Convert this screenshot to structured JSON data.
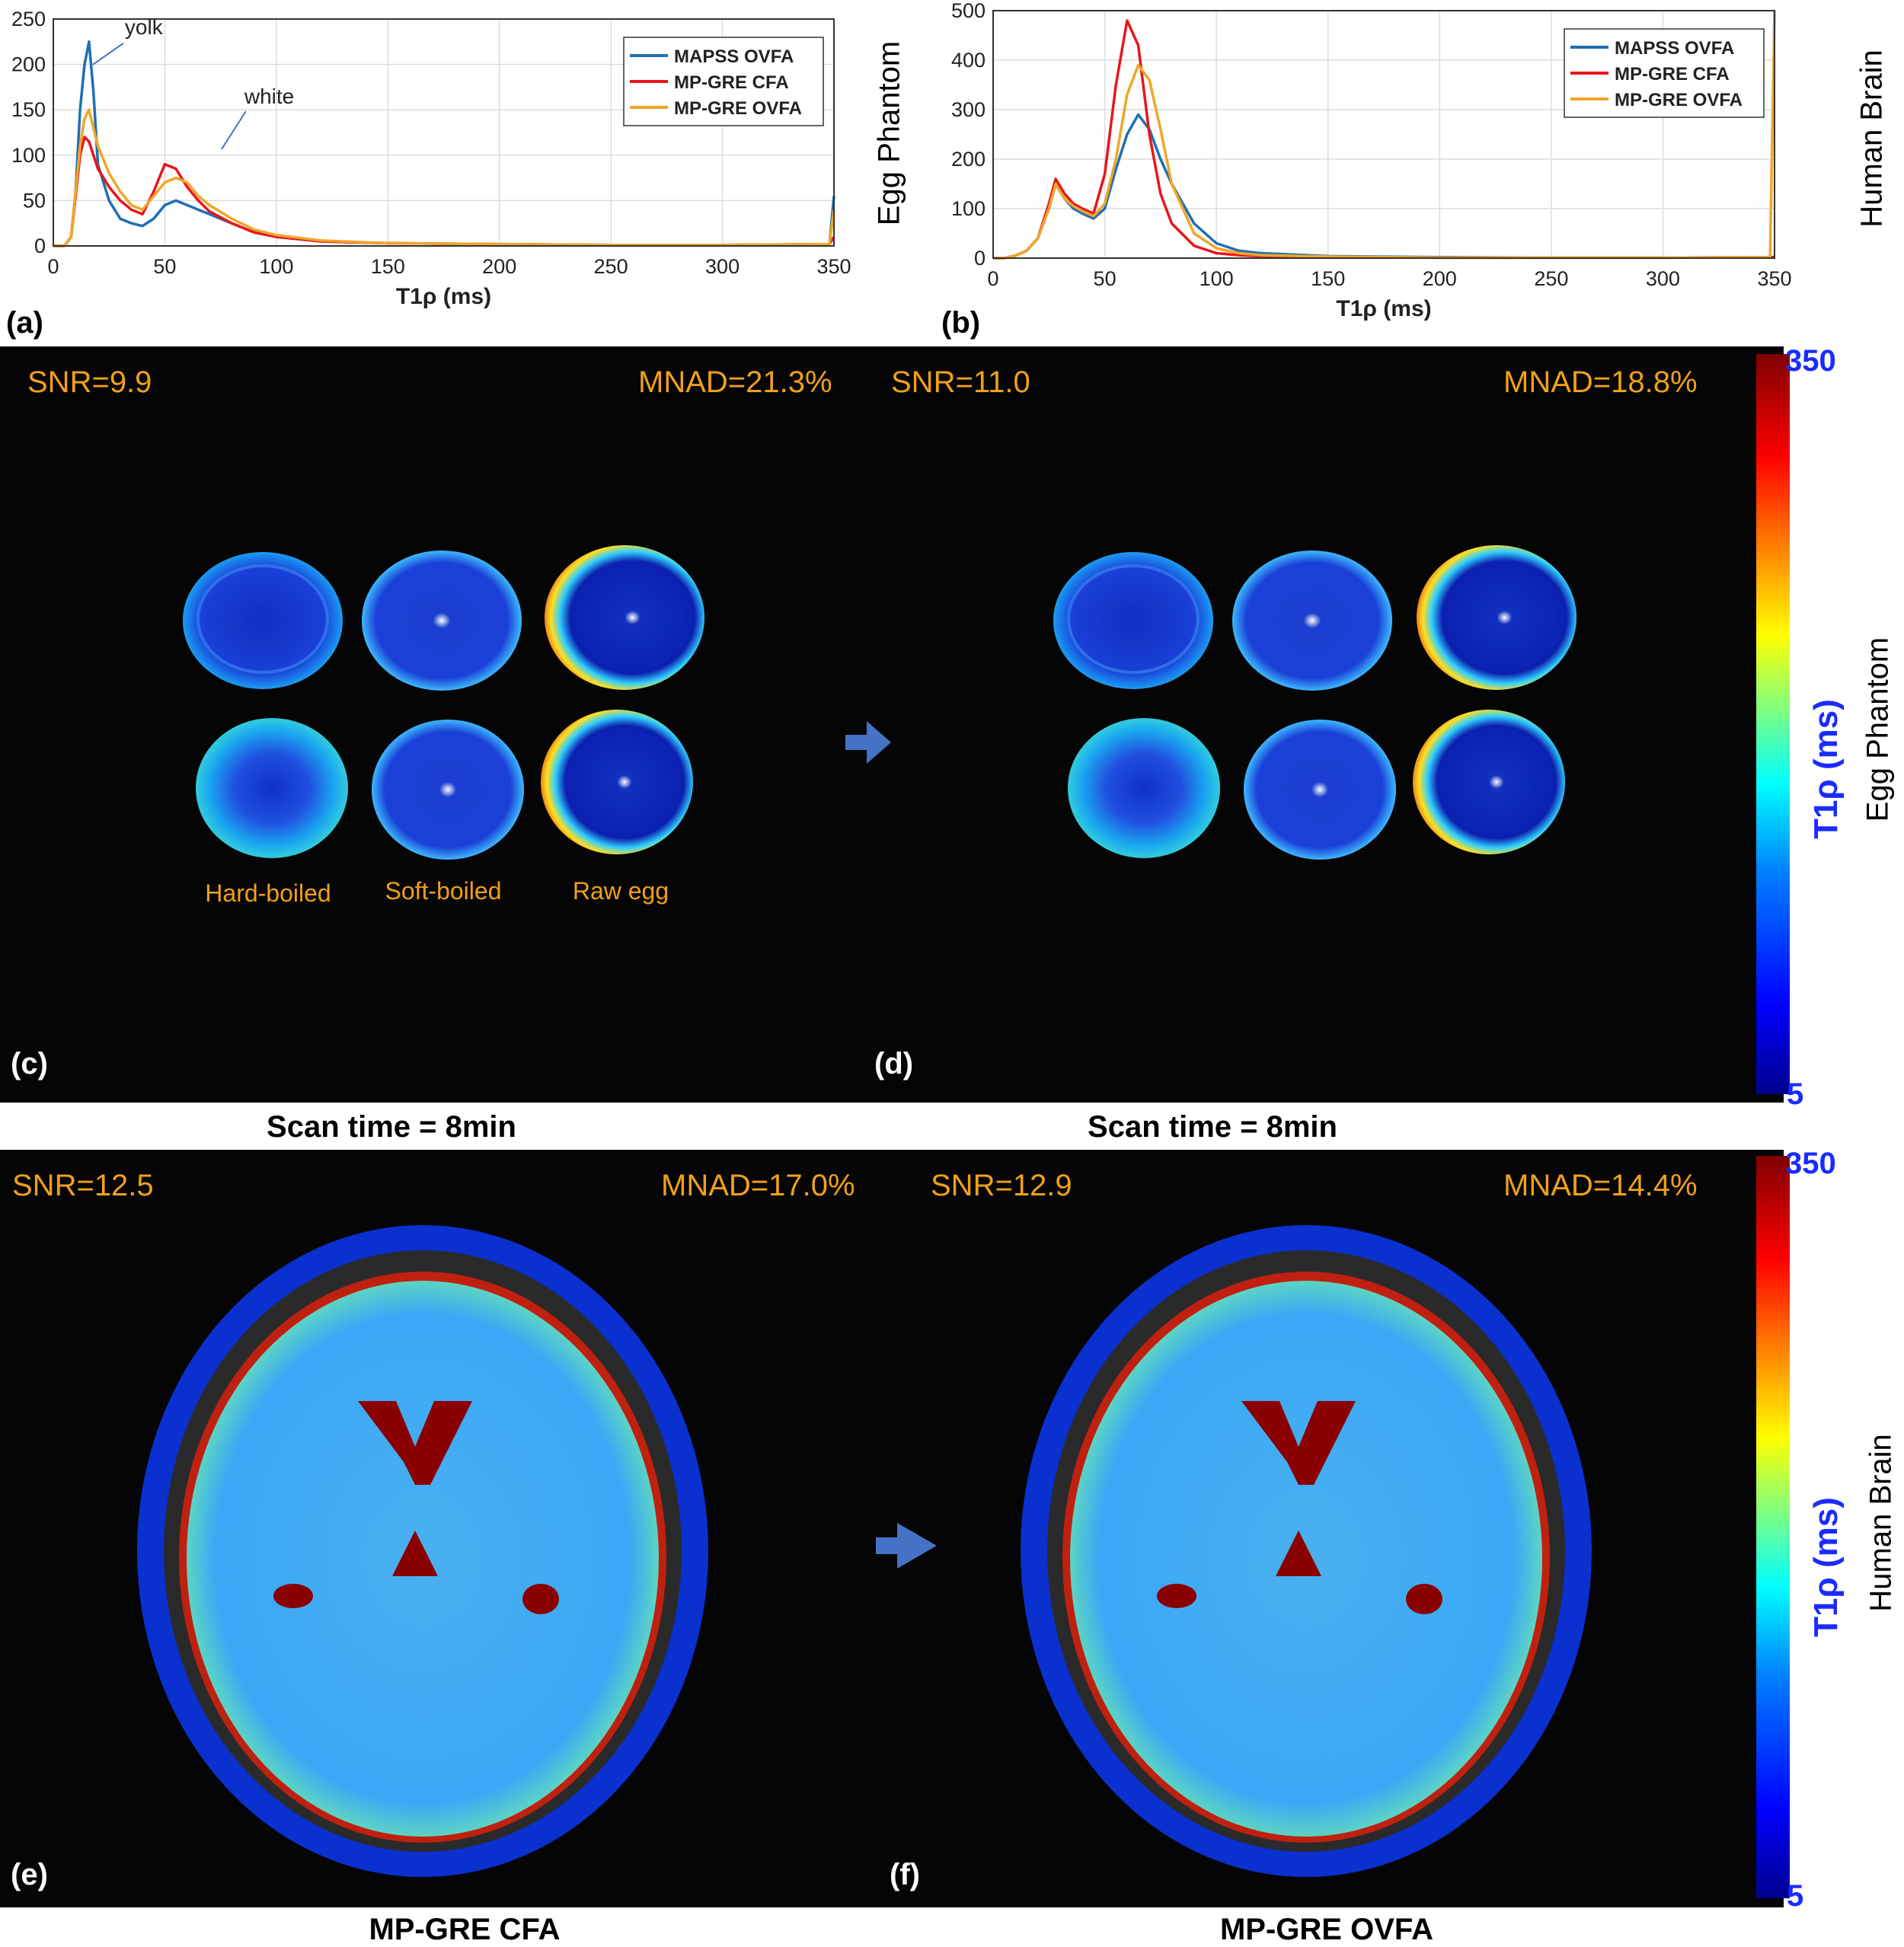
{
  "panel_letters": {
    "a": "(a)",
    "b": "(b)",
    "c": "(c)",
    "d": "(d)",
    "e": "(e)",
    "f": "(f)"
  },
  "side_labels": {
    "egg_top": "Egg Phantom",
    "brain_top": "Human Brain",
    "egg_cb": "Egg Phantom",
    "brain_cb": "Human Brain"
  },
  "colorbar": {
    "label": "T1ρ (ms)",
    "max": "350",
    "min": "5"
  },
  "egg_maps": {
    "c": {
      "snr": "SNR=9.9",
      "mnad": "MNAD=21.3%"
    },
    "d": {
      "snr": "SNR=11.0",
      "mnad": "MNAD=18.8%"
    },
    "labels": [
      "Hard-boiled",
      "Soft-boiled",
      "Raw egg"
    ],
    "caption_c": "Scan time = 8min",
    "caption_d": "Scan time = 8min"
  },
  "brain_maps": {
    "e": {
      "snr": "SNR=12.5",
      "mnad": "MNAD=17.0%"
    },
    "f": {
      "snr": "SNR=12.9",
      "mnad": "MNAD=14.4%"
    },
    "caption_e": "MP-GRE CFA",
    "caption_f": "MP-GRE OVFA"
  },
  "colors": {
    "mapss": "#1f6fb4",
    "cfa": "#e8161b",
    "ovfa": "#f0a628",
    "stat_text": "#f0a01a",
    "colorbar_text": "#1a2bff"
  },
  "chart_data": [
    {
      "id": "a",
      "type": "line",
      "xlabel": "T1ρ (ms)",
      "ylabel": "",
      "xlim": [
        0,
        350
      ],
      "ylim": [
        0,
        250
      ],
      "xticks": [
        0,
        50,
        100,
        150,
        200,
        250,
        300,
        350
      ],
      "yticks": [
        0,
        50,
        100,
        150,
        200,
        250
      ],
      "grid": true,
      "legend": "top-right",
      "annotations": [
        {
          "text": "yolk",
          "x": 15,
          "y": 225
        },
        {
          "text": "white",
          "x": 72,
          "y": 140
        }
      ],
      "series": [
        {
          "name": "MAPSS OVFA",
          "color": "#1f6fb4",
          "x": [
            0,
            5,
            8,
            10,
            12,
            14,
            16,
            18,
            20,
            25,
            30,
            35,
            40,
            45,
            50,
            55,
            60,
            65,
            70,
            80,
            90,
            100,
            120,
            150,
            200,
            250,
            300,
            348,
            350
          ],
          "y": [
            0,
            0,
            10,
            60,
            150,
            200,
            225,
            170,
            90,
            50,
            30,
            25,
            22,
            30,
            45,
            50,
            45,
            40,
            35,
            25,
            15,
            10,
            5,
            3,
            2,
            1,
            1,
            2,
            55
          ]
        },
        {
          "name": "MP-GRE CFA",
          "color": "#e8161b",
          "x": [
            0,
            5,
            8,
            10,
            12,
            14,
            16,
            18,
            20,
            25,
            30,
            35,
            40,
            45,
            50,
            55,
            60,
            65,
            70,
            80,
            90,
            100,
            120,
            150,
            200,
            250,
            300,
            348,
            350
          ],
          "y": [
            0,
            0,
            10,
            55,
            100,
            120,
            115,
            100,
            85,
            65,
            50,
            40,
            35,
            60,
            90,
            85,
            65,
            50,
            38,
            25,
            15,
            10,
            5,
            3,
            2,
            1,
            1,
            2,
            10
          ]
        },
        {
          "name": "MP-GRE OVFA",
          "color": "#f0a628",
          "x": [
            0,
            5,
            8,
            10,
            12,
            14,
            16,
            18,
            20,
            25,
            30,
            35,
            40,
            45,
            50,
            55,
            60,
            65,
            70,
            80,
            90,
            100,
            120,
            150,
            200,
            250,
            300,
            348,
            350
          ],
          "y": [
            0,
            0,
            10,
            60,
            110,
            140,
            150,
            130,
            110,
            80,
            60,
            45,
            40,
            55,
            70,
            75,
            70,
            55,
            45,
            30,
            18,
            12,
            6,
            3,
            2,
            1,
            1,
            2,
            40
          ]
        }
      ]
    },
    {
      "id": "b",
      "type": "line",
      "xlabel": "T1ρ (ms)",
      "ylabel": "",
      "xlim": [
        0,
        350
      ],
      "ylim": [
        0,
        500
      ],
      "xticks": [
        0,
        50,
        100,
        150,
        200,
        250,
        300,
        350
      ],
      "yticks": [
        0,
        100,
        200,
        300,
        400,
        500
      ],
      "grid": true,
      "legend": "top-right",
      "series": [
        {
          "name": "MAPSS OVFA",
          "color": "#1f6fb4",
          "x": [
            0,
            5,
            10,
            15,
            20,
            25,
            28,
            32,
            36,
            40,
            45,
            50,
            55,
            60,
            65,
            70,
            75,
            80,
            90,
            100,
            110,
            120,
            150,
            200,
            250,
            300,
            348,
            350
          ],
          "y": [
            0,
            0,
            5,
            15,
            40,
            100,
            150,
            120,
            100,
            90,
            80,
            100,
            180,
            250,
            290,
            260,
            200,
            150,
            70,
            30,
            15,
            10,
            4,
            2,
            1,
            1,
            2,
            2
          ]
        },
        {
          "name": "MP-GRE CFA",
          "color": "#e8161b",
          "x": [
            0,
            5,
            10,
            15,
            20,
            25,
            28,
            32,
            36,
            40,
            45,
            50,
            55,
            60,
            65,
            70,
            75,
            80,
            90,
            100,
            110,
            120,
            150,
            200,
            250,
            300,
            348,
            350
          ],
          "y": [
            0,
            0,
            5,
            15,
            40,
            110,
            160,
            130,
            110,
            100,
            90,
            170,
            350,
            480,
            430,
            250,
            130,
            70,
            25,
            10,
            6,
            4,
            2,
            1,
            1,
            1,
            2,
            2
          ]
        },
        {
          "name": "MP-GRE OVFA",
          "color": "#f0a628",
          "x": [
            0,
            5,
            10,
            15,
            20,
            25,
            28,
            32,
            36,
            40,
            45,
            50,
            55,
            60,
            65,
            70,
            75,
            80,
            90,
            100,
            110,
            120,
            150,
            200,
            250,
            300,
            348,
            350
          ],
          "y": [
            0,
            0,
            5,
            15,
            40,
            100,
            150,
            120,
            105,
            95,
            85,
            110,
            200,
            330,
            390,
            360,
            260,
            150,
            50,
            20,
            10,
            6,
            3,
            1,
            1,
            1,
            2,
            500
          ]
        }
      ]
    }
  ]
}
